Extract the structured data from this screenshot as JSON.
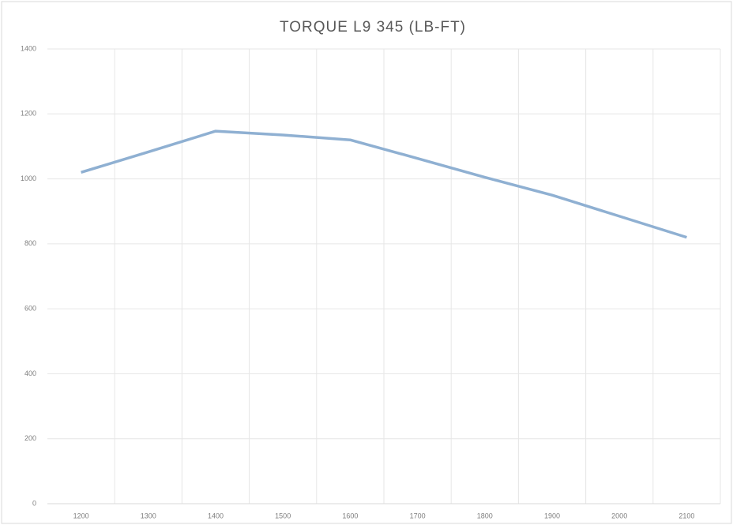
{
  "chart_data": {
    "type": "line",
    "title": "TORQUE L9 345 (LB-FT)",
    "categories": [
      "1200",
      "1300",
      "1400",
      "1500",
      "1600",
      "1700",
      "1800",
      "1900",
      "2000",
      "2100"
    ],
    "series": [
      {
        "name": "Torque",
        "color": "#8fb0d2",
        "values": [
          1020,
          1083,
          1147,
          1135,
          1120,
          1063,
          1005,
          950,
          885,
          820
        ]
      }
    ],
    "ylim": [
      0,
      1400
    ],
    "yticks": [
      0,
      200,
      400,
      600,
      800,
      1000,
      1200,
      1400
    ],
    "grid": true
  }
}
